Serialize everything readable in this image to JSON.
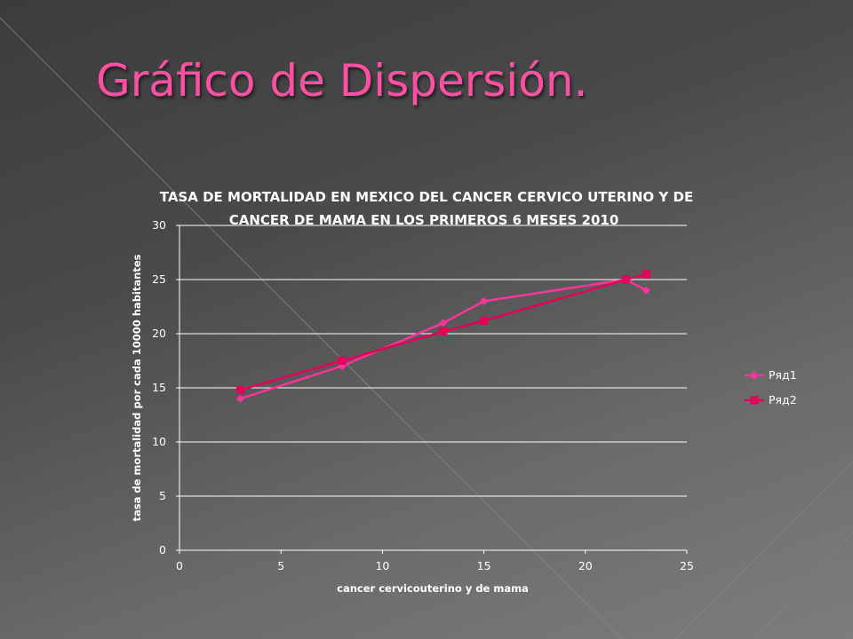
{
  "slide": {
    "title": "Gráfico de Dispersión."
  },
  "colors": {
    "title": "#ff4fa0",
    "series1": "#ff3399",
    "series2": "#e6005c",
    "gridline": "#ffffff",
    "text": "#ffffff"
  },
  "chart_data": {
    "type": "line",
    "title_lines": [
      "TASA DE MORTALIDAD EN MEXICO DEL CANCER CERVICO UTERINO Y DE",
      "CANCER DE MAMA EN LOS PRIMEROS 6 MESES 2010"
    ],
    "xlabel": "cancer cervicouterino y de mama",
    "ylabel": "tasa de mortalidad por cada 10000 habitantes",
    "xlim": [
      0,
      25
    ],
    "ylim": [
      0,
      30
    ],
    "xticks": [
      0,
      5,
      10,
      15,
      20,
      25
    ],
    "yticks": [
      0,
      5,
      10,
      15,
      20,
      25,
      30
    ],
    "grid": "horizontal",
    "legend_position": "right",
    "series": [
      {
        "name": "Ряд1",
        "marker": "diamond",
        "color": "#ff3399",
        "x": [
          3,
          8,
          13,
          15,
          22,
          23
        ],
        "y": [
          14,
          17,
          21,
          23,
          25,
          24
        ]
      },
      {
        "name": "Ряд2",
        "marker": "square",
        "color": "#e6005c",
        "x": [
          3,
          8,
          13,
          15,
          22,
          23
        ],
        "y": [
          14.8,
          17.5,
          20.2,
          21.2,
          25,
          25.5
        ]
      }
    ]
  }
}
